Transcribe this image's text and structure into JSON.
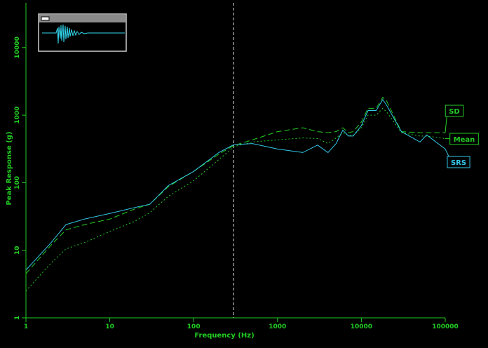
{
  "chart_data": {
    "type": "line",
    "xlabel": "Frequency (Hz)",
    "ylabel": "Peak Response (g)",
    "log_x": true,
    "log_y": true,
    "xlim": [
      1,
      100000
    ],
    "ylim": [
      1,
      46000
    ],
    "xticks": [
      1,
      10,
      100,
      1000,
      10000,
      100000
    ],
    "yticks": [
      1,
      10,
      100,
      1000,
      10000
    ],
    "cursor_x": 300,
    "axis_color": "#22cc22",
    "x": [
      1,
      2,
      3,
      5,
      10,
      20,
      30,
      50,
      100,
      200,
      300,
      500,
      1000,
      2000,
      3000,
      4000,
      5000,
      6000,
      7000,
      8000,
      10000,
      12000,
      15000,
      18000,
      20000,
      30000,
      50000,
      60000,
      100000
    ],
    "series": [
      {
        "name": "SD",
        "color": "#22cc22",
        "dash": "8,4",
        "values": [
          4.5,
          12,
          20,
          24,
          29,
          41,
          48,
          88,
          147,
          265,
          355,
          430,
          570,
          650,
          570,
          550,
          570,
          650,
          550,
          570,
          790,
          1260,
          1260,
          1830,
          1620,
          570,
          550,
          550,
          550
        ]
      },
      {
        "name": "Mean",
        "color": "#22cc22",
        "dash": "2,3",
        "values": [
          2.5,
          6.5,
          10.5,
          13,
          19,
          27,
          36,
          63,
          107,
          220,
          340,
          400,
          430,
          460,
          450,
          380,
          460,
          550,
          500,
          500,
          650,
          1000,
          1000,
          1260,
          1120,
          550,
          490,
          490,
          450
        ]
      },
      {
        "name": "SRS",
        "color": "#33c8e8",
        "dash": "",
        "values": [
          5.1,
          13,
          24,
          29,
          35,
          43,
          48,
          91,
          147,
          280,
          365,
          380,
          315,
          280,
          360,
          280,
          380,
          600,
          490,
          490,
          700,
          1170,
          1170,
          1700,
          1400,
          570,
          400,
          510,
          315
        ]
      }
    ]
  }
}
